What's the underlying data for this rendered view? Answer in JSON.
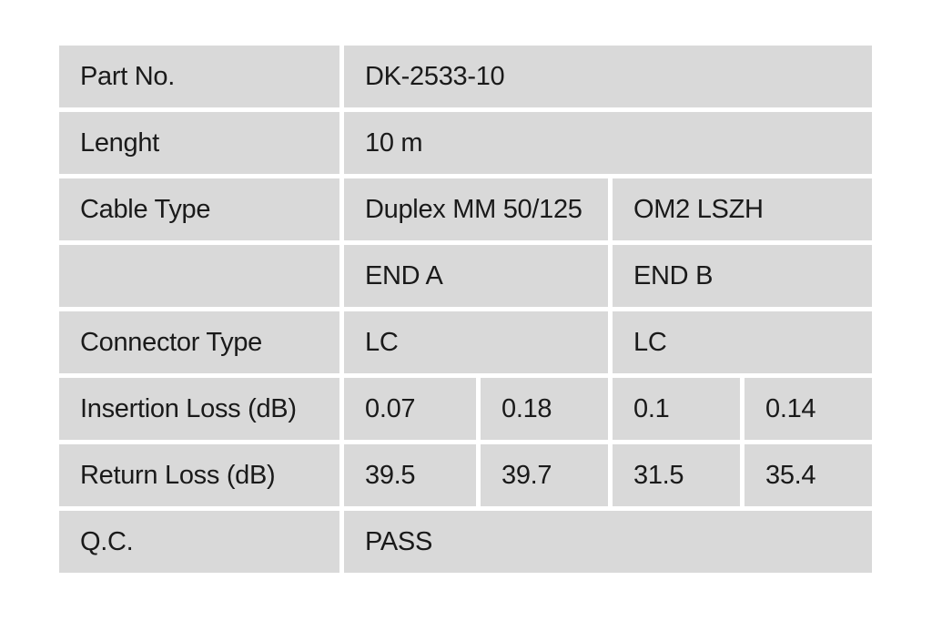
{
  "colors": {
    "cell_bg": "#d9d9d9",
    "page_bg": "#ffffff",
    "text": "#1a1a1a"
  },
  "table": {
    "rows": [
      {
        "label": "Part No.",
        "cells": [
          {
            "text": "DK-2533-10",
            "span": 4
          }
        ]
      },
      {
        "label": "Lenght",
        "cells": [
          {
            "text": "10 m",
            "span": 4
          }
        ]
      },
      {
        "label": "Cable Type",
        "cells": [
          {
            "text": "Duplex MM 50/125",
            "span": 2
          },
          {
            "text": "OM2 LSZH",
            "span": 2
          }
        ]
      },
      {
        "label": "",
        "cells": [
          {
            "text": "END A",
            "span": 2
          },
          {
            "text": "END B",
            "span": 2
          }
        ]
      },
      {
        "label": "Connector Type",
        "cells": [
          {
            "text": "LC",
            "span": 2
          },
          {
            "text": "LC",
            "span": 2
          }
        ]
      },
      {
        "label": "Insertion Loss (dB)",
        "cells": [
          {
            "text": "0.07",
            "span": 1
          },
          {
            "text": "0.18",
            "span": 1
          },
          {
            "text": "0.1",
            "span": 1
          },
          {
            "text": "0.14",
            "span": 1
          }
        ]
      },
      {
        "label": "Return Loss (dB)",
        "cells": [
          {
            "text": "39.5",
            "span": 1
          },
          {
            "text": "39.7",
            "span": 1
          },
          {
            "text": "31.5",
            "span": 1
          },
          {
            "text": "35.4",
            "span": 1
          }
        ]
      },
      {
        "label": "Q.C.",
        "cells": [
          {
            "text": "PASS",
            "span": 4
          }
        ]
      }
    ]
  }
}
